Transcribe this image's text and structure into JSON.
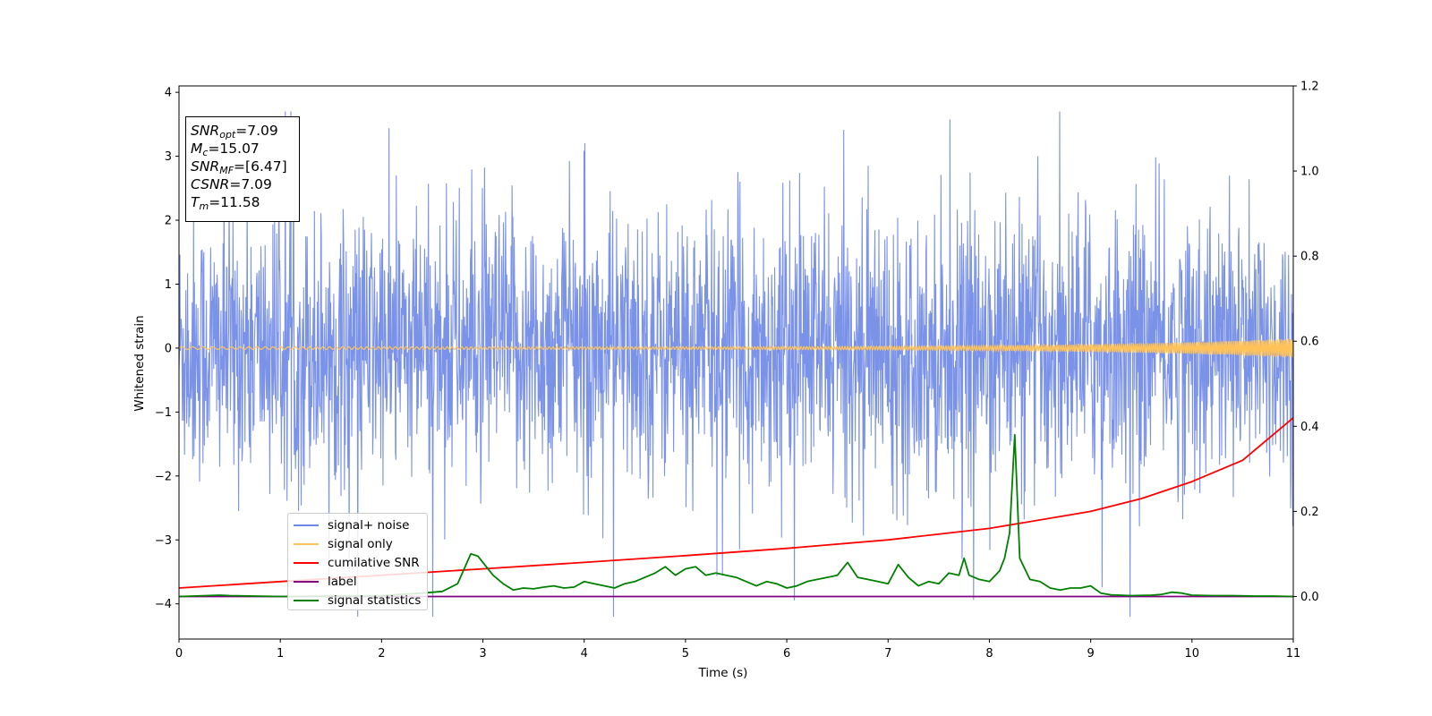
{
  "chart_data": {
    "type": "line",
    "title": "",
    "xlabel": "Time (s)",
    "ylabel": "Whitened strain",
    "ylabel_right": "",
    "xlim": [
      0,
      11
    ],
    "ylim": [
      -4.55,
      4.1
    ],
    "ylim_right": [
      -0.1,
      1.2
    ],
    "x_ticks": [
      "0",
      "1",
      "2",
      "3",
      "4",
      "5",
      "6",
      "7",
      "8",
      "9",
      "10",
      "11"
    ],
    "y_ticks_left": [
      "−4",
      "−3",
      "−2",
      "−1",
      "0",
      "1",
      "2",
      "3",
      "4"
    ],
    "y_ticks_right": [
      "0.0",
      "0.2",
      "0.4",
      "0.6",
      "0.8",
      "1.0",
      "1.2"
    ],
    "grid": false,
    "legend_placement": "lower-left",
    "series": [
      {
        "name": "signal+ noise",
        "axis": "left",
        "color": "#6b86e6",
        "kind": "noise",
        "amplitude_range": [
          -4.2,
          3.7
        ]
      },
      {
        "name": "signal only",
        "axis": "left",
        "color": "#ffc35a",
        "kind": "chirp",
        "start_amplitude": 0.02,
        "end_amplitude": 0.15
      },
      {
        "name": "cumilative SNR",
        "axis": "right",
        "color": "#ff0000",
        "x": [
          0,
          1,
          2,
          3,
          4,
          5,
          6,
          7,
          8,
          9,
          9.5,
          10,
          10.5,
          11
        ],
        "y": [
          0.02,
          0.035,
          0.05,
          0.065,
          0.08,
          0.096,
          0.113,
          0.133,
          0.16,
          0.2,
          0.23,
          0.27,
          0.32,
          0.42
        ]
      },
      {
        "name": "label",
        "axis": "right",
        "color": "#800080",
        "x": [
          0,
          11
        ],
        "y": [
          0,
          0
        ]
      },
      {
        "name": "signal statistics",
        "axis": "right",
        "color": "#008000",
        "x": [
          0,
          0.4,
          0.5,
          1.0,
          2.0,
          2.4,
          2.6,
          2.75,
          2.88,
          2.95,
          3.1,
          3.2,
          3.3,
          3.4,
          3.5,
          3.6,
          3.7,
          3.8,
          3.9,
          4.0,
          4.1,
          4.2,
          4.3,
          4.4,
          4.5,
          4.6,
          4.7,
          4.8,
          4.9,
          5.0,
          5.1,
          5.2,
          5.3,
          5.4,
          5.5,
          5.6,
          5.7,
          5.8,
          5.9,
          6.0,
          6.1,
          6.2,
          6.3,
          6.4,
          6.5,
          6.6,
          6.7,
          6.8,
          6.9,
          7.0,
          7.1,
          7.2,
          7.3,
          7.4,
          7.5,
          7.6,
          7.7,
          7.75,
          7.8,
          7.9,
          8.0,
          8.1,
          8.15,
          8.2,
          8.25,
          8.3,
          8.4,
          8.5,
          8.6,
          8.7,
          8.8,
          8.9,
          9.0,
          9.1,
          9.2,
          9.4,
          9.6,
          9.7,
          9.8,
          9.9,
          10.0,
          10.2,
          10.4,
          10.6,
          10.8,
          11.0
        ],
        "y": [
          0.0,
          0.003,
          0.002,
          0.0,
          0.002,
          0.008,
          0.012,
          0.03,
          0.1,
          0.095,
          0.05,
          0.03,
          0.015,
          0.02,
          0.018,
          0.022,
          0.025,
          0.02,
          0.022,
          0.035,
          0.03,
          0.025,
          0.02,
          0.03,
          0.035,
          0.045,
          0.055,
          0.07,
          0.05,
          0.065,
          0.07,
          0.05,
          0.055,
          0.05,
          0.045,
          0.035,
          0.025,
          0.035,
          0.03,
          0.02,
          0.025,
          0.035,
          0.04,
          0.045,
          0.05,
          0.08,
          0.045,
          0.04,
          0.035,
          0.03,
          0.075,
          0.045,
          0.025,
          0.035,
          0.03,
          0.055,
          0.05,
          0.09,
          0.05,
          0.04,
          0.035,
          0.06,
          0.09,
          0.15,
          0.38,
          0.09,
          0.04,
          0.035,
          0.02,
          0.015,
          0.02,
          0.02,
          0.025,
          0.008,
          0.004,
          0.002,
          0.003,
          0.005,
          0.01,
          0.008,
          0.003,
          0.002,
          0.002,
          0.001,
          0.001,
          0.0
        ]
      }
    ]
  },
  "info_box": {
    "snr_opt": {
      "sym": "SNR",
      "sub": "opt",
      "val": "=7.09"
    },
    "mc": {
      "sym": "M",
      "sub": "c",
      "val": "=15.07"
    },
    "snr_mf": {
      "sym": "SNR",
      "sub": "MF",
      "val": "=[6.47]"
    },
    "csnr": {
      "sym": "CSNR",
      "val": "=7.09"
    },
    "tm": {
      "sym": "T",
      "sub": "m",
      "val": "=11.58"
    }
  },
  "legend": {
    "items": [
      {
        "label": "signal+ noise",
        "color": "#6b86e6"
      },
      {
        "label": "signal only",
        "color": "#ffc35a"
      },
      {
        "label": "cumilative SNR",
        "color": "#ff0000"
      },
      {
        "label": "label",
        "color": "#800080"
      },
      {
        "label": "signal statistics",
        "color": "#008000"
      }
    ]
  }
}
